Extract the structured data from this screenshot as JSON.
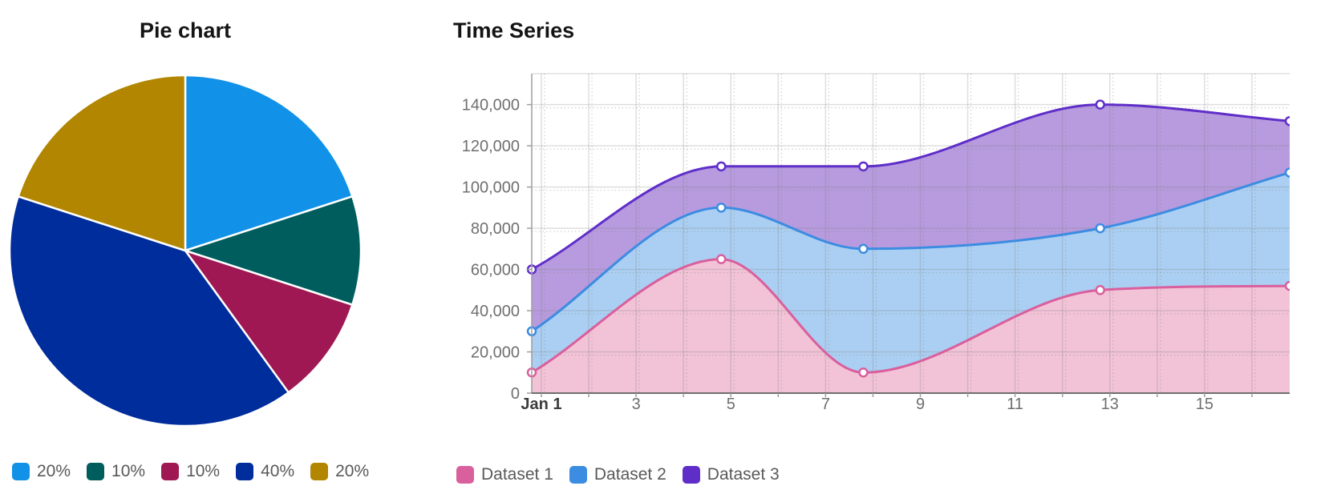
{
  "chart_data": [
    {
      "type": "pie",
      "title": "Pie chart",
      "labels": [
        "20%",
        "10%",
        "10%",
        "40%",
        "20%"
      ],
      "values": [
        20,
        10,
        10,
        40,
        20
      ],
      "colors": [
        "#1192e8",
        "#005d5d",
        "#9f1853",
        "#002d9c",
        "#b28600"
      ],
      "start_angle_deg": 0,
      "direction": "clockwise",
      "slice_border_color": "#ffffff",
      "legend_position": "bottom"
    },
    {
      "type": "area",
      "title": "Time Series",
      "x_unit": "day of January",
      "x": [
        1,
        5,
        8,
        13,
        17
      ],
      "series": [
        {
          "name": "Dataset 1",
          "values": [
            10000,
            65000,
            10000,
            50000,
            52000
          ],
          "line_color": "#d95f9d",
          "fill_color": "#f2c3d6"
        },
        {
          "name": "Dataset 2",
          "values": [
            30000,
            90000,
            70000,
            80000,
            107000
          ],
          "line_color": "#3c8ce2",
          "fill_color": "#abcff2"
        },
        {
          "name": "Dataset 3",
          "values": [
            60000,
            110000,
            110000,
            140000,
            132000
          ],
          "line_color": "#5f2ec9",
          "fill_color": "#b79bde"
        }
      ],
      "x_tick_values": [
        1,
        3,
        5,
        7,
        9,
        11,
        13,
        15
      ],
      "x_tick_labels": [
        "Jan 1",
        "3",
        "5",
        "7",
        "9",
        "11",
        "13",
        "15"
      ],
      "y_tick_values": [
        0,
        20000,
        40000,
        60000,
        80000,
        100000,
        120000,
        140000
      ],
      "y_tick_labels": [
        "0",
        "20,000",
        "40,000",
        "60,000",
        "80,000",
        "100,000",
        "120,000",
        "140,000"
      ],
      "xlim": [
        1,
        17
      ],
      "ylim": [
        0,
        155000
      ],
      "grid": true,
      "curve": "monotone",
      "point_style": "white-filled-circle",
      "legend_position": "bottom"
    }
  ]
}
